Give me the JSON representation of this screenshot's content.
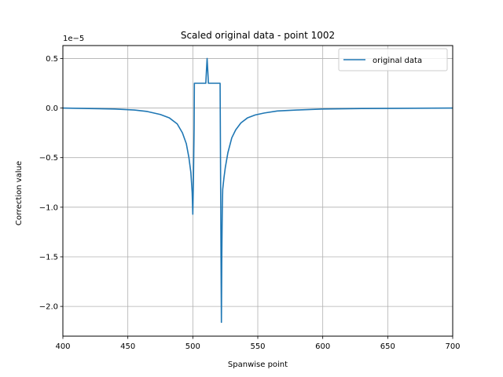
{
  "chart_data": {
    "type": "line",
    "title": "Scaled original data - point 1002",
    "xlabel": "Spanwise point",
    "ylabel": "Correction value",
    "offset_label": "1e−5",
    "xlim": [
      400,
      700
    ],
    "ylim": [
      -2.3,
      0.63
    ],
    "xticks": [
      400,
      450,
      500,
      550,
      600,
      650,
      700
    ],
    "xtick_labels": [
      "400",
      "450",
      "500",
      "550",
      "600",
      "650",
      "700"
    ],
    "yticks": [
      0.5,
      0.0,
      -0.5,
      -1.0,
      -1.5,
      -2.0
    ],
    "ytick_labels": [
      "0.5",
      "0.0",
      "−0.5",
      "−1.0",
      "−1.5",
      "−2.0"
    ],
    "grid": true,
    "legend_position": "upper right",
    "series": [
      {
        "name": "original data",
        "color": "#1f77b4",
        "x": [
          400,
          420,
          440,
          455,
          465,
          475,
          482,
          488,
          492,
          495,
          497,
          498.5,
          499.5,
          500,
          500.5,
          501,
          501.2,
          505,
          510,
          510.5,
          511,
          511.5,
          512,
          515,
          521,
          521.3,
          521.7,
          522,
          522.3,
          522.7,
          523,
          524,
          525,
          527,
          530,
          533,
          537,
          542,
          548,
          555,
          565,
          580,
          600,
          630,
          670,
          700
        ],
        "y": [
          0.0,
          -0.005,
          -0.01,
          -0.02,
          -0.035,
          -0.065,
          -0.1,
          -0.16,
          -0.25,
          -0.36,
          -0.5,
          -0.65,
          -0.85,
          -1.07,
          -0.7,
          -0.2,
          0.25,
          0.25,
          0.25,
          0.38,
          0.5,
          0.38,
          0.25,
          0.25,
          0.25,
          -0.5,
          -1.5,
          -2.16,
          -1.5,
          -1.0,
          -0.82,
          -0.7,
          -0.6,
          -0.45,
          -0.3,
          -0.22,
          -0.15,
          -0.1,
          -0.07,
          -0.05,
          -0.03,
          -0.02,
          -0.01,
          -0.005,
          -0.002,
          0.0
        ]
      }
    ]
  }
}
